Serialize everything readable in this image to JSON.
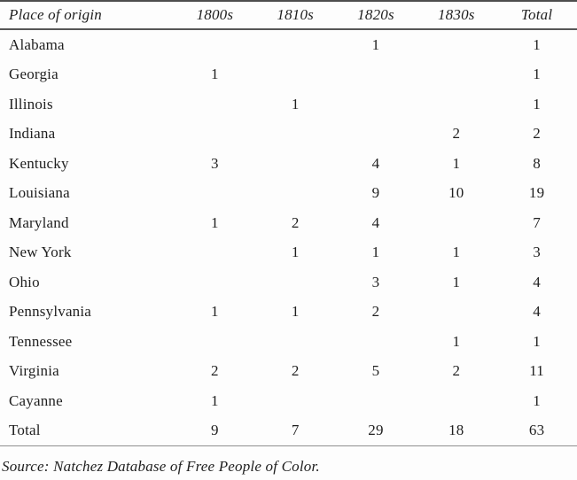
{
  "table": {
    "columns": [
      "Place of origin",
      "1800s",
      "1810s",
      "1820s",
      "1830s",
      "Total"
    ],
    "rows": [
      {
        "label": "Alabama",
        "values": [
          "",
          "",
          "1",
          "",
          "1"
        ]
      },
      {
        "label": "Georgia",
        "values": [
          "1",
          "",
          "",
          "",
          "1"
        ]
      },
      {
        "label": "Illinois",
        "values": [
          "",
          "1",
          "",
          "",
          "1"
        ]
      },
      {
        "label": "Indiana",
        "values": [
          "",
          "",
          "",
          "2",
          "2"
        ]
      },
      {
        "label": "Kentucky",
        "values": [
          "3",
          "",
          "4",
          "1",
          "8"
        ]
      },
      {
        "label": "Louisiana",
        "values": [
          "",
          "",
          "9",
          "10",
          "19"
        ]
      },
      {
        "label": "Maryland",
        "values": [
          "1",
          "2",
          "4",
          "",
          "7"
        ]
      },
      {
        "label": "New York",
        "values": [
          "",
          "1",
          "1",
          "1",
          "3"
        ]
      },
      {
        "label": "Ohio",
        "values": [
          "",
          "",
          "3",
          "1",
          "4"
        ]
      },
      {
        "label": "Pennsylvania",
        "values": [
          "1",
          "1",
          "2",
          "",
          "4"
        ]
      },
      {
        "label": "Tennessee",
        "values": [
          "",
          "",
          "",
          "1",
          "1"
        ]
      },
      {
        "label": "Virginia",
        "values": [
          "2",
          "2",
          "5",
          "2",
          "11"
        ]
      },
      {
        "label": "Cayanne",
        "values": [
          "1",
          "",
          "",
          "",
          "1"
        ]
      },
      {
        "label": "Total",
        "values": [
          "9",
          "7",
          "29",
          "18",
          "63"
        ]
      }
    ],
    "source_note": "Source: Natchez Database of Free People of Color."
  },
  "colors": {
    "text": "#1f1f1f",
    "rule_dark": "#4d4d4d",
    "rule_light": "#8f8f8f",
    "background": "#fdfdfd"
  }
}
